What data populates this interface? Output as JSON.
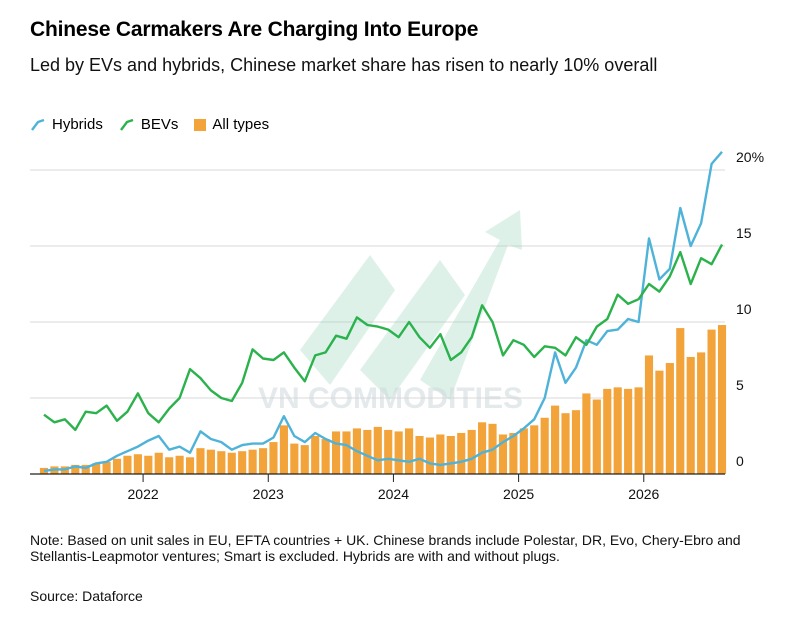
{
  "title": "Chinese Carmakers Are Charging Into Europe",
  "subtitle": "Led by EVs and hybrids, Chinese market share has risen to nearly 10% overall",
  "watermark": "VN COMMODITIES",
  "note": "Note: Based on unit sales in EU, EFTA countries + UK. Chinese brands include Polestar, DR, Evo, Chery-Ebro and Stellantis-Leapmotor ventures; Smart is excluded. Hybrids are with and without plugs.",
  "source": "Source: Dataforce",
  "colors": {
    "hybrids": "#4fb3d9",
    "bevs": "#2bb24c",
    "all": "#f2a33a"
  },
  "chart_data": {
    "type": "bar",
    "x_start": "2021-03",
    "x_end": "2026-04",
    "ylim": [
      0,
      21
    ],
    "yticks": [
      0,
      5,
      10,
      15,
      20
    ],
    "ytick_labels": [
      "0",
      "5",
      "10",
      "15",
      "20%"
    ],
    "xticks": [
      "2022",
      "2023",
      "2024",
      "2025",
      "2026"
    ],
    "legend": [
      "Hybrids",
      "BEVs",
      "All types"
    ],
    "series": [
      {
        "name": "Hybrids",
        "type": "line",
        "values": [
          0.2,
          0.3,
          0.3,
          0.5,
          0.4,
          0.7,
          0.8,
          1.2,
          1.5,
          1.8,
          2.2,
          2.5,
          1.6,
          1.8,
          1.4,
          2.8,
          2.3,
          2.1,
          1.6,
          1.9,
          2.0,
          2.0,
          2.4,
          3.8,
          2.5,
          2.1,
          2.7,
          2.3,
          2.0,
          1.9,
          1.5,
          1.2,
          0.9,
          1.0,
          0.9,
          0.8,
          1.0,
          0.7,
          0.6,
          0.7,
          0.8,
          1.0,
          1.4,
          1.6,
          2.1,
          2.5,
          3.0,
          3.6,
          5.0,
          8.0,
          6.0,
          7.0,
          8.8,
          8.5,
          9.4,
          9.5,
          10.2,
          10.0,
          15.5,
          12.8,
          13.5,
          17.5,
          15.0,
          16.5,
          20.4,
          21.2
        ]
      },
      {
        "name": "BEVs",
        "type": "line",
        "values": [
          3.9,
          3.4,
          3.6,
          2.9,
          4.1,
          4.0,
          4.5,
          3.5,
          4.1,
          5.3,
          4.0,
          3.4,
          4.3,
          5.0,
          6.9,
          6.3,
          5.5,
          5.0,
          4.8,
          6.0,
          8.2,
          7.6,
          7.5,
          8.0,
          7.0,
          6.1,
          7.8,
          8.0,
          9.1,
          8.9,
          10.3,
          9.8,
          9.7,
          9.5,
          9.0,
          10.0,
          9.0,
          8.3,
          9.2,
          7.5,
          8.0,
          9.0,
          11.1,
          10.0,
          7.8,
          8.8,
          8.5,
          7.7,
          8.4,
          8.3,
          7.8,
          9.0,
          8.5,
          9.7,
          10.2,
          11.8,
          11.2,
          11.5,
          12.5,
          12.0,
          13.0,
          14.6,
          12.5,
          14.2,
          13.8,
          15.1
        ]
      },
      {
        "name": "All types",
        "type": "bar",
        "values": [
          0.4,
          0.5,
          0.5,
          0.6,
          0.6,
          0.7,
          0.8,
          1.0,
          1.2,
          1.3,
          1.2,
          1.4,
          1.1,
          1.2,
          1.1,
          1.7,
          1.6,
          1.5,
          1.4,
          1.5,
          1.6,
          1.7,
          2.1,
          3.2,
          2.0,
          1.9,
          2.5,
          2.3,
          2.8,
          2.8,
          3.0,
          2.9,
          3.1,
          2.9,
          2.8,
          3.0,
          2.5,
          2.4,
          2.6,
          2.5,
          2.7,
          2.9,
          3.4,
          3.3,
          2.6,
          2.7,
          3.0,
          3.2,
          3.7,
          4.5,
          4.0,
          4.2,
          5.3,
          4.9,
          5.6,
          5.7,
          5.6,
          5.7,
          7.8,
          6.8,
          7.3,
          9.6,
          7.7,
          8.0,
          9.5,
          9.8
        ]
      }
    ]
  }
}
